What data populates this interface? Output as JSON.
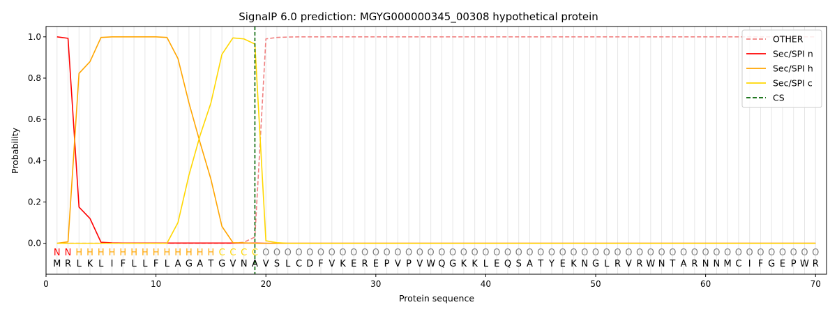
{
  "chart_data": {
    "type": "line",
    "title": "SignalP 6.0 prediction: MGYG000000345_00308 hypothetical protein",
    "xlabel": "Protein sequence",
    "ylabel": "Probability",
    "xlim": [
      0,
      71
    ],
    "ylim": [
      -0.15,
      1.05
    ],
    "x_ticks": [
      0,
      10,
      20,
      30,
      40,
      50,
      60,
      70
    ],
    "y_ticks": [
      0.0,
      0.2,
      0.4,
      0.6,
      0.8,
      1.0
    ],
    "x_tick_labels": [
      "0",
      "10",
      "20",
      "30",
      "40",
      "50",
      "60",
      "70"
    ],
    "y_tick_labels": [
      "0.0",
      "0.2",
      "0.4",
      "0.6",
      "0.8",
      "1.0"
    ],
    "grid": "vertical lines at every residue",
    "legend_position": "top-right",
    "sequence": [
      "M",
      "R",
      "L",
      "K",
      "L",
      "I",
      "F",
      "L",
      "L",
      "F",
      "L",
      "A",
      "G",
      "A",
      "T",
      "G",
      "V",
      "N",
      "A",
      "V",
      "S",
      "L",
      "C",
      "D",
      "F",
      "V",
      "K",
      "E",
      "R",
      "E",
      "P",
      "V",
      "P",
      "V",
      "W",
      "Q",
      "G",
      "K",
      "K",
      "L",
      "E",
      "Q",
      "S",
      "A",
      "T",
      "Y",
      "E",
      "K",
      "N",
      "G",
      "L",
      "R",
      "V",
      "R",
      "W",
      "N",
      "T",
      "A",
      "R",
      "N",
      "N",
      "M",
      "C",
      "I",
      "F",
      "G",
      "E",
      "P",
      "W",
      "R"
    ],
    "labels": [
      "N",
      "N",
      "H",
      "H",
      "H",
      "H",
      "H",
      "H",
      "H",
      "H",
      "H",
      "H",
      "H",
      "H",
      "H",
      "C",
      "C",
      "C",
      "C",
      "O",
      "O",
      "O",
      "O",
      "O",
      "O",
      "O",
      "O",
      "O",
      "O",
      "O",
      "O",
      "O",
      "O",
      "O",
      "O",
      "O",
      "O",
      "O",
      "O",
      "O",
      "O",
      "O",
      "O",
      "O",
      "O",
      "O",
      "O",
      "O",
      "O",
      "O",
      "O",
      "O",
      "O",
      "O",
      "O",
      "O",
      "O",
      "O",
      "O",
      "O",
      "O",
      "O",
      "O",
      "O",
      "O",
      "O",
      "O",
      "O",
      "O",
      "O"
    ],
    "label_colors": {
      "N": "#ff0000",
      "H": "#ffa500",
      "C": "#ffd700",
      "O": "#808080"
    },
    "cleavage_site": 19,
    "series": [
      {
        "name": "OTHER",
        "color": "#f08080",
        "dash": true,
        "values": [
          0.0,
          0.0,
          0.0,
          0.0,
          0.0,
          0.0,
          0.0,
          0.0,
          0.0,
          0.0,
          0.0,
          0.0,
          0.0,
          0.0,
          0.0,
          0.0,
          0.0,
          0.005,
          0.03,
          0.99,
          0.997,
          0.999,
          1,
          1,
          1,
          1,
          1,
          1,
          1,
          1,
          1,
          1,
          1,
          1,
          1,
          1,
          1,
          1,
          1,
          1,
          1,
          1,
          1,
          1,
          1,
          1,
          1,
          1,
          1,
          1,
          1,
          1,
          1,
          1,
          1,
          1,
          1,
          1,
          1,
          1,
          1,
          1,
          1,
          1,
          1,
          1,
          1,
          1,
          1,
          1
        ]
      },
      {
        "name": "Sec/SPI n",
        "color": "#ff0000",
        "dash": false,
        "values": [
          1.0,
          0.993,
          0.175,
          0.12,
          0.005,
          0.002,
          0.001,
          0.001,
          0.001,
          0.001,
          0.001,
          0.001,
          0.001,
          0.001,
          0.001,
          0.001,
          0.001,
          0.001,
          0.001,
          0,
          0,
          0,
          0,
          0,
          0,
          0,
          0,
          0,
          0,
          0,
          0,
          0,
          0,
          0,
          0,
          0,
          0,
          0,
          0,
          0,
          0,
          0,
          0,
          0,
          0,
          0,
          0,
          0,
          0,
          0,
          0,
          0,
          0,
          0,
          0,
          0,
          0,
          0,
          0,
          0,
          0,
          0,
          0,
          0,
          0,
          0,
          0,
          0,
          0,
          0
        ]
      },
      {
        "name": "Sec/SPI h",
        "color": "#ffa500",
        "dash": false,
        "values": [
          0.0,
          0.007,
          0.823,
          0.88,
          0.997,
          1.0,
          1.0,
          1.0,
          1.0,
          1.0,
          0.997,
          0.895,
          0.68,
          0.49,
          0.31,
          0.082,
          0.003,
          0.002,
          0.0,
          0,
          0,
          0,
          0,
          0,
          0,
          0,
          0,
          0,
          0,
          0,
          0,
          0,
          0,
          0,
          0,
          0,
          0,
          0,
          0,
          0,
          0,
          0,
          0,
          0,
          0,
          0,
          0,
          0,
          0,
          0,
          0,
          0,
          0,
          0,
          0,
          0,
          0,
          0,
          0,
          0,
          0,
          0,
          0,
          0,
          0,
          0,
          0,
          0,
          0,
          0
        ]
      },
      {
        "name": "Sec/SPI c",
        "color": "#ffd700",
        "dash": false,
        "values": [
          0.0,
          0.0,
          0.0,
          0.0,
          0.0,
          0.0,
          0.0,
          0.0,
          0.0,
          0.0,
          0.0,
          0.1,
          0.33,
          0.52,
          0.68,
          0.915,
          0.995,
          0.99,
          0.965,
          0.012,
          0.003,
          0,
          0,
          0,
          0,
          0,
          0,
          0,
          0,
          0,
          0,
          0,
          0,
          0,
          0,
          0,
          0,
          0,
          0,
          0,
          0,
          0,
          0,
          0,
          0,
          0,
          0,
          0,
          0,
          0,
          0,
          0,
          0,
          0,
          0,
          0,
          0,
          0,
          0,
          0,
          0,
          0,
          0,
          0,
          0,
          0,
          0,
          0,
          0,
          0
        ]
      }
    ],
    "legend": [
      {
        "name": "OTHER",
        "color": "#f08080",
        "dash": true
      },
      {
        "name": "Sec/SPI n",
        "color": "#ff0000",
        "dash": false
      },
      {
        "name": "Sec/SPI h",
        "color": "#ffa500",
        "dash": false
      },
      {
        "name": "Sec/SPI c",
        "color": "#ffd700",
        "dash": false
      },
      {
        "name": "CS",
        "color": "#006400",
        "dash": true
      }
    ]
  }
}
